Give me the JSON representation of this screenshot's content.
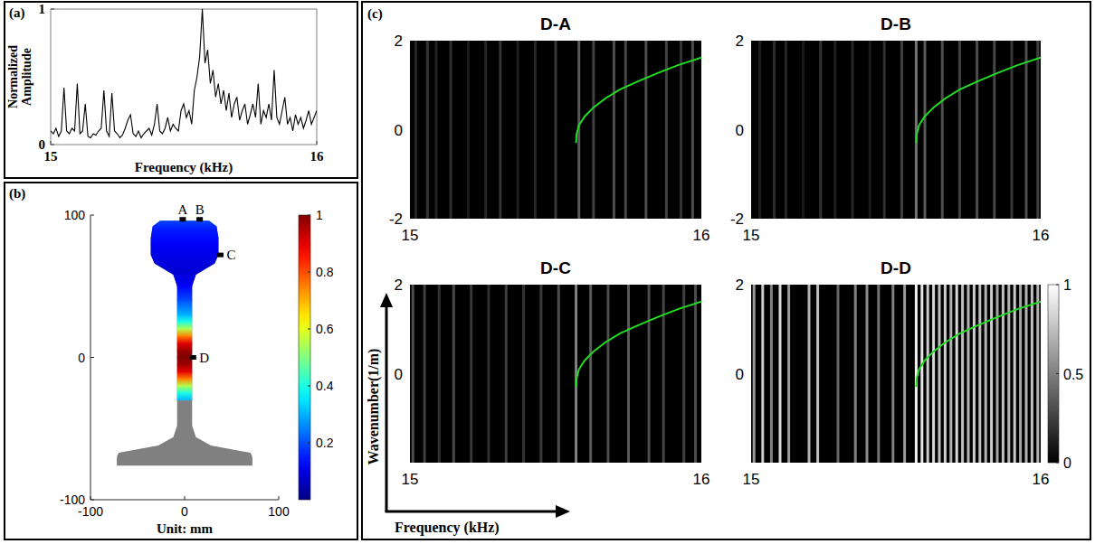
{
  "chart_data": [
    {
      "type": "line",
      "panel_label": "(a)",
      "xlabel": "Frequency (kHz)",
      "ylabel": "Normalized Amplitude",
      "color": "#000000",
      "xlim": [
        15,
        16
      ],
      "xticks": [
        15,
        16
      ],
      "ylim": [
        0,
        1
      ],
      "yticks": [
        0,
        1
      ],
      "x": [
        15,
        15.01,
        15.02,
        15.03,
        15.04,
        15.05,
        15.06,
        15.07,
        15.08,
        15.09,
        15.1,
        15.11,
        15.12,
        15.13,
        15.14,
        15.15,
        15.16,
        15.17,
        15.18,
        15.19,
        15.2,
        15.21,
        15.22,
        15.23,
        15.24,
        15.25,
        15.26,
        15.27,
        15.28,
        15.29,
        15.3,
        15.31,
        15.32,
        15.33,
        15.34,
        15.35,
        15.36,
        15.37,
        15.38,
        15.39,
        15.4,
        15.41,
        15.42,
        15.43,
        15.44,
        15.45,
        15.46,
        15.47,
        15.48,
        15.49,
        15.5,
        15.51,
        15.52,
        15.53,
        15.54,
        15.55,
        15.56,
        15.57,
        15.58,
        15.59,
        15.6,
        15.61,
        15.62,
        15.63,
        15.64,
        15.65,
        15.66,
        15.67,
        15.68,
        15.69,
        15.7,
        15.71,
        15.72,
        15.73,
        15.74,
        15.75,
        15.76,
        15.77,
        15.78,
        15.79,
        15.8,
        15.81,
        15.82,
        15.83,
        15.84,
        15.85,
        15.86,
        15.87,
        15.88,
        15.89,
        15.9,
        15.91,
        15.92,
        15.93,
        15.94,
        15.95,
        15.96,
        15.97,
        15.98,
        15.99,
        16
      ],
      "values": [
        0.1,
        0.08,
        0.12,
        0.06,
        0.1,
        0.42,
        0.1,
        0.08,
        0.12,
        0.1,
        0.45,
        0.08,
        0.1,
        0.3,
        0.06,
        0.05,
        0.08,
        0.07,
        0.1,
        0.12,
        0.4,
        0.1,
        0.06,
        0.38,
        0.1,
        0.08,
        0.05,
        0.07,
        0.12,
        0.18,
        0.22,
        0.08,
        0.06,
        0.1,
        0.05,
        0.08,
        0.1,
        0.12,
        0.07,
        0.15,
        0.3,
        0.1,
        0.08,
        0.12,
        0.2,
        0.1,
        0.15,
        0.12,
        0.1,
        0.25,
        0.3,
        0.2,
        0.25,
        0.15,
        0.4,
        0.5,
        0.65,
        1.0,
        0.6,
        0.7,
        0.45,
        0.55,
        0.35,
        0.45,
        0.3,
        0.4,
        0.25,
        0.38,
        0.2,
        0.3,
        0.35,
        0.18,
        0.25,
        0.3,
        0.15,
        0.22,
        0.3,
        0.2,
        0.45,
        0.15,
        0.25,
        0.2,
        0.3,
        0.18,
        0.55,
        0.2,
        0.15,
        0.25,
        0.35,
        0.15,
        0.2,
        0.1,
        0.22,
        0.15,
        0.2,
        0.12,
        0.18,
        0.25,
        0.15,
        0.2,
        0.25
      ]
    },
    {
      "type": "mode_shape",
      "panel_label": "(b)",
      "xlabel": "Unit: mm",
      "xlim": [
        -100,
        100
      ],
      "xticks": [
        -100,
        0,
        100
      ],
      "ylim": [
        -100,
        100
      ],
      "yticks": [
        -100,
        0,
        100
      ],
      "web_profile": {
        "y": [
          -30,
          -25,
          -20,
          -15,
          -10,
          -5,
          0,
          5,
          10,
          15,
          20,
          25,
          30,
          40,
          50,
          60,
          70,
          80,
          90,
          97
        ],
        "amplitude": [
          0.3,
          0.4,
          0.55,
          0.75,
          0.9,
          0.97,
          1.0,
          0.97,
          0.9,
          0.75,
          0.55,
          0.4,
          0.3,
          0.2,
          0.12,
          0.08,
          0.1,
          0.12,
          0.15,
          0.2
        ]
      },
      "points": [
        {
          "label": "A",
          "x": -2,
          "y": 97
        },
        {
          "label": "B",
          "x": 16,
          "y": 97
        },
        {
          "label": "C",
          "x": 38,
          "y": 72
        },
        {
          "label": "D",
          "x": 9,
          "y": 0
        }
      ],
      "colorbar": {
        "range": [
          0,
          1
        ],
        "ticks": [
          0.2,
          0.4,
          0.6,
          0.8,
          1
        ]
      }
    },
    {
      "type": "dispersion",
      "panel_label": "(c)",
      "xlabel": "Frequency (kHz)",
      "ylabel": "Wavenumber(1/m)",
      "colorbar": {
        "range": [
          0,
          1
        ],
        "ticks": [
          0,
          0.5,
          1
        ]
      },
      "panels": [
        {
          "title": "D-A",
          "xlim": [
            15,
            16
          ],
          "xticks": [
            15,
            16
          ],
          "ylim": [
            -2,
            2
          ],
          "yticks": [
            -2,
            0,
            2
          ],
          "stripes": {
            "frequency": [
              15.02,
              15.06,
              15.09,
              15.14,
              15.2,
              15.26,
              15.31,
              15.37,
              15.43,
              15.5,
              15.58,
              15.63,
              15.7,
              15.74,
              15.81,
              15.88,
              15.93,
              15.97
            ],
            "intensity": [
              0.15,
              0.2,
              0.12,
              0.18,
              0.1,
              0.15,
              0.2,
              0.12,
              0.15,
              0.22,
              0.35,
              0.25,
              0.3,
              0.28,
              0.3,
              0.25,
              0.2,
              0.3
            ]
          },
          "curve": {
            "color": "#22dd22",
            "x": [
              15.57,
              15.572,
              15.58,
              15.6,
              15.63,
              15.67,
              15.72,
              15.78,
              15.85,
              15.92,
              16.0
            ],
            "y": [
              -0.3,
              -0.1,
              0.1,
              0.3,
              0.5,
              0.7,
              0.9,
              1.08,
              1.27,
              1.45,
              1.62
            ]
          }
        },
        {
          "title": "D-B",
          "xlim": [
            15,
            16
          ],
          "xticks": [
            15,
            16
          ],
          "ylim": [
            -2,
            2
          ],
          "yticks": [
            -2,
            0,
            2
          ],
          "stripes": {
            "frequency": [
              15.03,
              15.08,
              15.12,
              15.18,
              15.24,
              15.29,
              15.35,
              15.41,
              15.46,
              15.52,
              15.57,
              15.6,
              15.66,
              15.72,
              15.78,
              15.84,
              15.9,
              15.95,
              15.99
            ],
            "intensity": [
              0.12,
              0.18,
              0.15,
              0.1,
              0.2,
              0.12,
              0.15,
              0.1,
              0.18,
              0.25,
              0.45,
              0.35,
              0.3,
              0.25,
              0.3,
              0.28,
              0.22,
              0.3,
              0.25
            ]
          },
          "curve": {
            "color": "#22dd22",
            "x": [
              15.57,
              15.572,
              15.58,
              15.6,
              15.63,
              15.67,
              15.72,
              15.78,
              15.85,
              15.92,
              16.0
            ],
            "y": [
              -0.3,
              -0.1,
              0.1,
              0.3,
              0.5,
              0.7,
              0.9,
              1.08,
              1.27,
              1.45,
              1.62
            ]
          }
        },
        {
          "title": "D-C",
          "xlim": [
            15,
            16
          ],
          "xticks": [
            15,
            16
          ],
          "ylim": [
            -2,
            2
          ],
          "yticks": [
            0,
            2
          ],
          "stripes": {
            "frequency": [
              15.01,
              15.05,
              15.1,
              15.15,
              15.21,
              15.27,
              15.33,
              15.39,
              15.45,
              15.51,
              15.57,
              15.62,
              15.68,
              15.75,
              15.82,
              15.87,
              15.94,
              15.98
            ],
            "intensity": [
              0.3,
              0.25,
              0.2,
              0.28,
              0.22,
              0.18,
              0.25,
              0.2,
              0.22,
              0.3,
              0.5,
              0.35,
              0.3,
              0.35,
              0.3,
              0.28,
              0.25,
              0.3
            ]
          },
          "curve": {
            "color": "#22dd22",
            "x": [
              15.57,
              15.572,
              15.58,
              15.6,
              15.63,
              15.67,
              15.72,
              15.78,
              15.85,
              15.92,
              16.0
            ],
            "y": [
              -0.3,
              -0.1,
              0.1,
              0.3,
              0.5,
              0.7,
              0.9,
              1.08,
              1.27,
              1.45,
              1.62
            ]
          }
        },
        {
          "title": "D-D",
          "xlim": [
            15,
            16
          ],
          "xticks": [
            15,
            16
          ],
          "ylim": [
            -2,
            2
          ],
          "yticks": [
            0,
            2
          ],
          "stripes": {
            "frequency": [
              15.01,
              15.04,
              15.07,
              15.1,
              15.13,
              15.2,
              15.23,
              15.3,
              15.36,
              15.4,
              15.44,
              15.49,
              15.53,
              15.57,
              15.59,
              15.61,
              15.63,
              15.65,
              15.67,
              15.69,
              15.71,
              15.73,
              15.75,
              15.77,
              15.79,
              15.81,
              15.83,
              15.85,
              15.87,
              15.89,
              15.91,
              15.93,
              15.95,
              15.97,
              15.99
            ],
            "intensity": [
              0.6,
              0.8,
              0.5,
              0.85,
              0.6,
              0.7,
              0.75,
              0.4,
              0.5,
              0.55,
              0.45,
              0.5,
              0.6,
              0.95,
              0.9,
              0.8,
              0.85,
              0.75,
              0.8,
              0.7,
              0.85,
              0.75,
              0.7,
              0.8,
              0.75,
              0.7,
              0.8,
              0.65,
              0.75,
              0.7,
              0.8,
              0.65,
              0.7,
              0.75,
              0.7
            ]
          },
          "curve": {
            "color": "#22dd22",
            "x": [
              15.57,
              15.572,
              15.58,
              15.6,
              15.63,
              15.67,
              15.72,
              15.78,
              15.85,
              15.92,
              16.0
            ],
            "y": [
              -0.3,
              -0.1,
              0.1,
              0.3,
              0.5,
              0.7,
              0.9,
              1.08,
              1.27,
              1.45,
              1.62
            ]
          }
        }
      ]
    }
  ]
}
